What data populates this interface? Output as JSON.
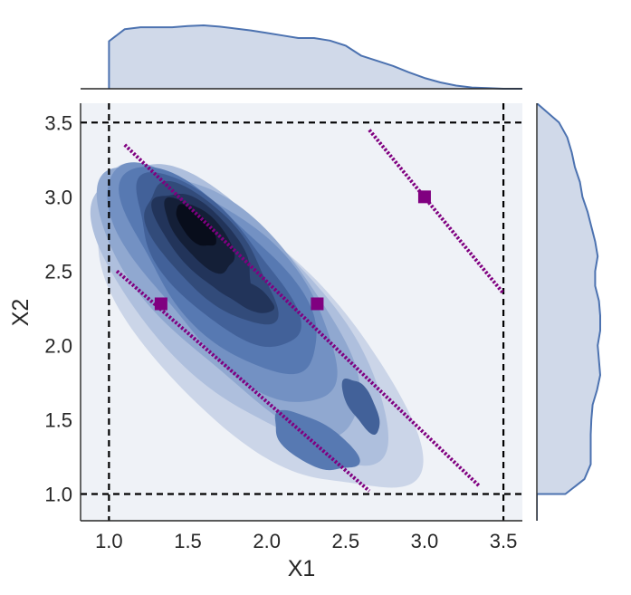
{
  "chart_data": {
    "type": "jointplot-kde",
    "xlabel": "X1",
    "ylabel": "X2",
    "xlim": [
      0.82,
      3.62
    ],
    "ylim": [
      0.82,
      3.63
    ],
    "x_ticks": [
      "1.0",
      "1.5",
      "2.0",
      "2.5",
      "3.0",
      "3.5"
    ],
    "y_ticks": [
      "1.0",
      "1.5",
      "2.0",
      "2.5",
      "3.0",
      "3.5"
    ],
    "grid": false,
    "density_levels": 9,
    "density_peak": [
      1.55,
      2.8
    ],
    "colors": {
      "kde_fill": "#4c72b0",
      "kde_line": "#4c72b0",
      "marginal_fill": "#d0d9e9",
      "reference": "#800080",
      "boundary": "#000000",
      "plot_bg": "#eff2f7"
    },
    "boundary_lines": {
      "vertical_x": [
        1.0,
        3.5
      ],
      "horizontal_y": [
        1.0,
        3.5
      ],
      "style": "dashed"
    },
    "reference_points": [
      {
        "x": 1.33,
        "y": 2.28
      },
      {
        "x": 2.32,
        "y": 2.28
      },
      {
        "x": 3.0,
        "y": 3.0
      }
    ],
    "reference_lines": [
      {
        "x": [
          1.05,
          2.65
        ],
        "y": [
          2.5,
          1.02
        ]
      },
      {
        "x": [
          1.1,
          3.35
        ],
        "y": [
          3.35,
          1.05
        ]
      },
      {
        "x": [
          2.65,
          3.5
        ],
        "y": [
          3.45,
          2.35
        ]
      }
    ],
    "marginal_x": {
      "x": [
        1.0,
        1.1,
        1.2,
        1.3,
        1.4,
        1.5,
        1.6,
        1.7,
        1.8,
        1.9,
        2.0,
        2.1,
        2.2,
        2.3,
        2.4,
        2.5,
        2.6,
        2.7,
        2.8,
        2.9,
        3.0,
        3.1,
        3.2,
        3.3,
        3.4,
        3.5
      ],
      "density": [
        0.75,
        0.94,
        0.97,
        0.97,
        0.97,
        0.99,
        1.0,
        0.98,
        0.95,
        0.92,
        0.88,
        0.84,
        0.8,
        0.8,
        0.76,
        0.68,
        0.52,
        0.44,
        0.36,
        0.26,
        0.17,
        0.1,
        0.05,
        0.02,
        0.01,
        0.0
      ]
    },
    "marginal_y": {
      "y": [
        1.0,
        1.1,
        1.2,
        1.3,
        1.4,
        1.5,
        1.6,
        1.7,
        1.8,
        1.9,
        2.0,
        2.1,
        2.2,
        2.3,
        2.4,
        2.5,
        2.6,
        2.7,
        2.8,
        2.9,
        3.0,
        3.1,
        3.2,
        3.3,
        3.4,
        3.5
      ],
      "density": [
        0.45,
        0.75,
        0.85,
        0.85,
        0.85,
        0.86,
        0.88,
        0.95,
        1.0,
        0.98,
        0.96,
        1.0,
        1.0,
        0.98,
        0.92,
        0.92,
        0.96,
        0.92,
        0.86,
        0.8,
        0.72,
        0.68,
        0.6,
        0.55,
        0.48,
        0.35
      ]
    }
  }
}
